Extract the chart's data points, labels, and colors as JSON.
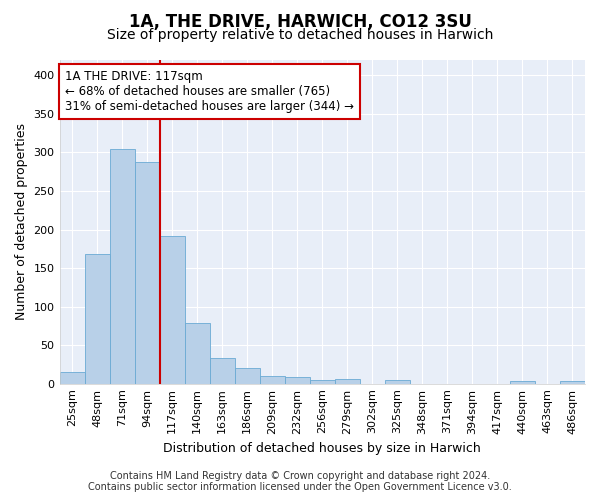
{
  "title": "1A, THE DRIVE, HARWICH, CO12 3SU",
  "subtitle": "Size of property relative to detached houses in Harwich",
  "xlabel": "Distribution of detached houses by size in Harwich",
  "ylabel": "Number of detached properties",
  "categories": [
    "25sqm",
    "48sqm",
    "71sqm",
    "94sqm",
    "117sqm",
    "140sqm",
    "163sqm",
    "186sqm",
    "209sqm",
    "232sqm",
    "256sqm",
    "279sqm",
    "302sqm",
    "325sqm",
    "348sqm",
    "371sqm",
    "394sqm",
    "417sqm",
    "440sqm",
    "463sqm",
    "486sqm"
  ],
  "values": [
    15,
    168,
    305,
    288,
    191,
    79,
    33,
    20,
    10,
    9,
    5,
    6,
    0,
    5,
    0,
    0,
    0,
    0,
    3,
    0,
    3
  ],
  "bar_color": "#b8d0e8",
  "bar_edge_color": "#6aaad4",
  "vline_color": "#cc0000",
  "annotation_text": "1A THE DRIVE: 117sqm\n← 68% of detached houses are smaller (765)\n31% of semi-detached houses are larger (344) →",
  "annotation_box_edge_color": "#cc0000",
  "ylim": [
    0,
    420
  ],
  "yticks": [
    0,
    50,
    100,
    150,
    200,
    250,
    300,
    350,
    400
  ],
  "footer_line1": "Contains HM Land Registry data © Crown copyright and database right 2024.",
  "footer_line2": "Contains public sector information licensed under the Open Government Licence v3.0.",
  "fig_bg_color": "#ffffff",
  "plot_bg_color": "#e8eef8",
  "grid_color": "#ffffff",
  "title_fontsize": 12,
  "subtitle_fontsize": 10,
  "axis_label_fontsize": 9,
  "tick_fontsize": 8,
  "annotation_fontsize": 8.5,
  "footer_fontsize": 7
}
